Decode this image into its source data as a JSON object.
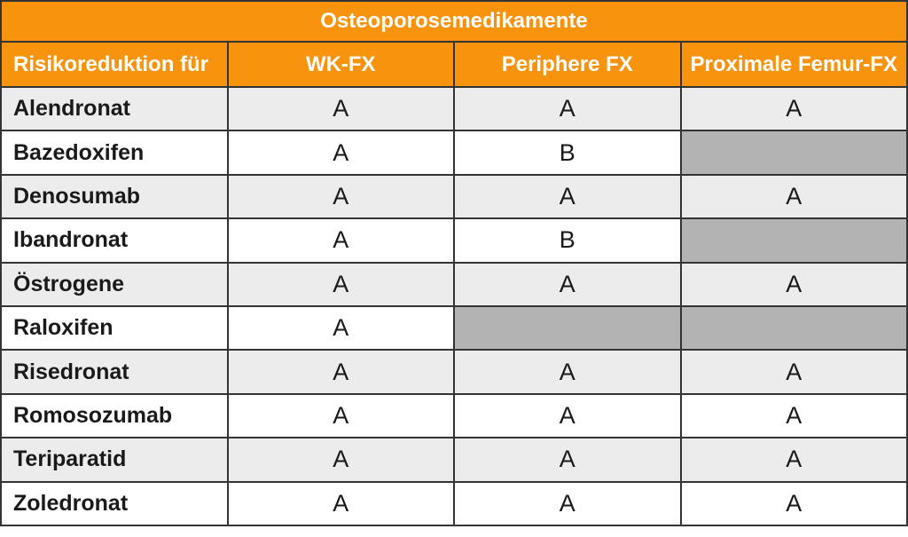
{
  "colors": {
    "accent_orange": "#F8930D",
    "header_text": "#FFFFFF",
    "row_shaded": "#ECECEC",
    "row_plain": "#FFFFFF",
    "no_data_cell": "#B3B3B3",
    "border": "#333333",
    "body_text": "#1A1A1A"
  },
  "chart_data": {
    "type": "table",
    "title": "Osteoporosemedikamente",
    "columns": [
      "Risikoreduktion für",
      "WK-FX",
      "Periphere FX",
      "Proximale Femur-FX"
    ],
    "rows": [
      {
        "name": "Alendronat",
        "values": [
          "A",
          "A",
          "A"
        ]
      },
      {
        "name": "Bazedoxifen",
        "values": [
          "A",
          "B",
          null
        ]
      },
      {
        "name": "Denosumab",
        "values": [
          "A",
          "A",
          "A"
        ]
      },
      {
        "name": "Ibandronat",
        "values": [
          "A",
          "B",
          null
        ]
      },
      {
        "name": "Östrogene",
        "values": [
          "A",
          "A",
          "A"
        ]
      },
      {
        "name": "Raloxifen",
        "values": [
          "A",
          null,
          null
        ]
      },
      {
        "name": "Risedronat",
        "values": [
          "A",
          "A",
          "A"
        ]
      },
      {
        "name": "Romosozumab",
        "values": [
          "A",
          "A",
          "A"
        ]
      },
      {
        "name": "Teriparatid",
        "values": [
          "A",
          "A",
          "A"
        ]
      },
      {
        "name": "Zoledronat",
        "values": [
          "A",
          "A",
          "A"
        ]
      }
    ],
    "notes": {
      "grid": "on",
      "shading": "alternating rows starting shaded",
      "empty_cell_meaning": "no evidence shown (solid gray cell)"
    }
  }
}
